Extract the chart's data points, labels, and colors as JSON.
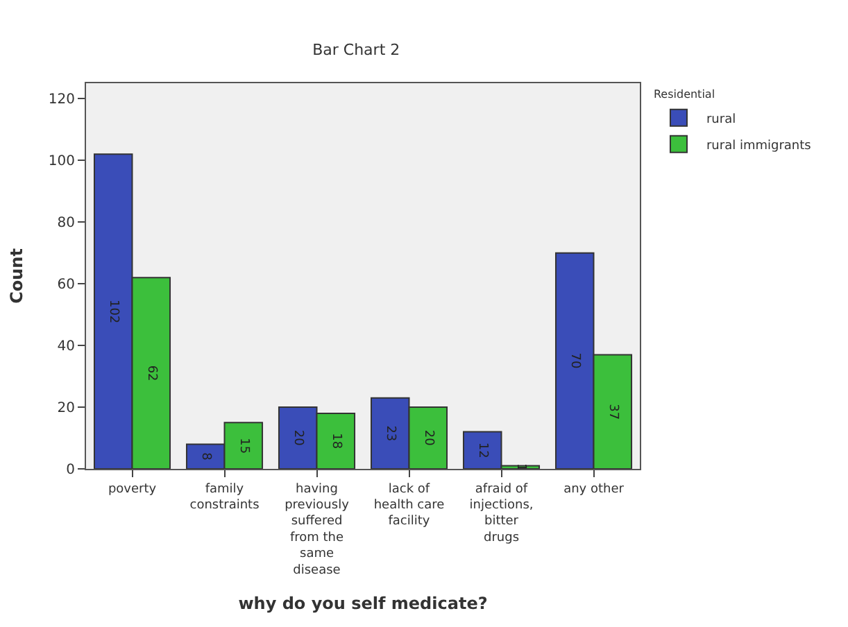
{
  "chart_data": {
    "type": "bar",
    "title": "Bar Chart 2",
    "xlabel": "why do you self medicate?",
    "ylabel": "Count",
    "legend_title": "Residential",
    "categories": [
      "poverty",
      "family constraints",
      "having previously suffered from the same disease",
      "lack of health care facility",
      "afraid of injections, bitter drugs",
      "any other"
    ],
    "series": [
      {
        "name": "rural",
        "color": "#3a4db8",
        "values": [
          102,
          8,
          20,
          23,
          12,
          70
        ]
      },
      {
        "name": "rural immigrants",
        "color": "#3cbf3c",
        "values": [
          62,
          15,
          18,
          20,
          1,
          37
        ]
      }
    ],
    "ylim": [
      0,
      125
    ],
    "yticks": [
      0,
      20,
      40,
      60,
      80,
      100,
      120
    ],
    "grid": false,
    "legend": "top right",
    "data_labels": true
  }
}
